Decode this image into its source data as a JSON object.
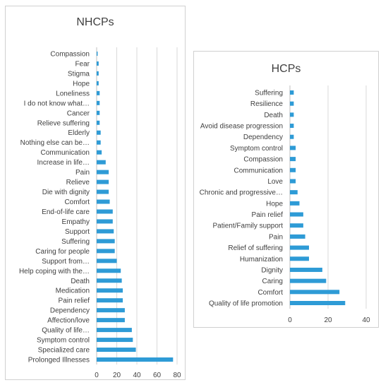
{
  "chart_data": [
    {
      "type": "bar",
      "orientation": "horizontal",
      "title": "NHCPs",
      "xlim": [
        0,
        80
      ],
      "xticks": [
        0,
        20,
        40,
        60,
        80
      ],
      "grid": true,
      "color": "#2e9bd6",
      "categories": [
        "Compassion",
        "Fear",
        "Stigma",
        "Hope",
        "Loneliness",
        "I do not know what…",
        "Cancer",
        "Relieve suffering",
        "Elderly",
        "Nothing else can be…",
        "Communication",
        "Increase in life…",
        "Pain",
        "Relieve",
        "Die with dignity",
        "Comfort",
        "End-of-life care",
        "Empathy",
        "Support",
        "Suffering",
        "Caring for people",
        "Support from…",
        "Help coping with the…",
        "Death",
        "Medication",
        "Pain relief",
        "Dependency",
        "Affection/love",
        "Quality of life…",
        "Symptom control",
        "Specialized care",
        "Prolonged Illnesses"
      ],
      "values": [
        1,
        2,
        2,
        2,
        3,
        3,
        3,
        3,
        4,
        4,
        5,
        9,
        12,
        12,
        12,
        13,
        16,
        16,
        17,
        18,
        18,
        20,
        24,
        25,
        26,
        26,
        28,
        28,
        35,
        36,
        39,
        76
      ]
    },
    {
      "type": "bar",
      "orientation": "horizontal",
      "title": "HCPs",
      "xlim": [
        0,
        40
      ],
      "xticks": [
        0,
        20,
        40
      ],
      "grid": true,
      "color": "#2e9bd6",
      "categories": [
        "Suffering",
        "Resilience",
        "Death",
        "Avoid disease progression",
        "Dependency",
        "Symptom control",
        "Compassion",
        "Communication",
        "Love",
        "Chronic and progressive…",
        "Hope",
        "Pain relief",
        "Patient/Family support",
        "Pain",
        "Relief of suffering",
        "Humanization",
        "Dignity",
        "Caring",
        "Comfort",
        "Quality of life promotion"
      ],
      "values": [
        2,
        2,
        2,
        2,
        2,
        3,
        3,
        3,
        3,
        4,
        5,
        7,
        7,
        8,
        10,
        10,
        17,
        19,
        26,
        29
      ]
    }
  ]
}
